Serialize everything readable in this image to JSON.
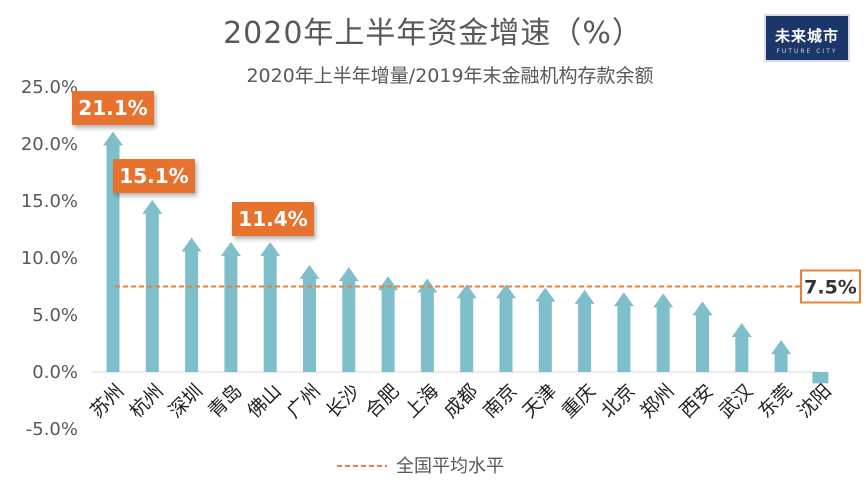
{
  "chart_data": {
    "type": "bar",
    "title": "2020年上半年资金增速（%）",
    "subtitle": "2020年上半年增量/2019年末金融机构存款余额",
    "categories": [
      "苏州",
      "杭州",
      "深圳",
      "青岛",
      "佛山",
      "广州",
      "长沙",
      "合肥",
      "上海",
      "成都",
      "南京",
      "天津",
      "重庆",
      "北京",
      "郑州",
      "西安",
      "武汉",
      "东莞",
      "沈阳"
    ],
    "values": [
      21.1,
      15.1,
      11.8,
      11.4,
      11.4,
      9.4,
      9.2,
      8.4,
      8.2,
      7.7,
      7.7,
      7.4,
      7.2,
      7.0,
      6.9,
      6.2,
      4.3,
      2.8,
      -1.0
    ],
    "data_labels": [
      {
        "index": 0,
        "text": "21.1%"
      },
      {
        "index": 1,
        "text": "15.1%"
      },
      {
        "index": 4,
        "text": "11.4%"
      }
    ],
    "y_ticks": [
      "25.0%",
      "20.0%",
      "15.0%",
      "10.0%",
      "5.0%",
      "0.0%",
      "-5.0%"
    ],
    "ylim": [
      -5,
      25
    ],
    "reference_line": {
      "value": 7.5,
      "label": "7.5%",
      "legend": "全国平均水平"
    },
    "grid": false,
    "legend_position": "bottom",
    "colors": {
      "bar": "#7fbfcc",
      "reference": "#e8803a",
      "callout": "#e8732f",
      "axis_text": "#595959",
      "title": "#595959"
    }
  },
  "logo": {
    "main": "未来城市",
    "sub": "FUTURE CITY"
  }
}
